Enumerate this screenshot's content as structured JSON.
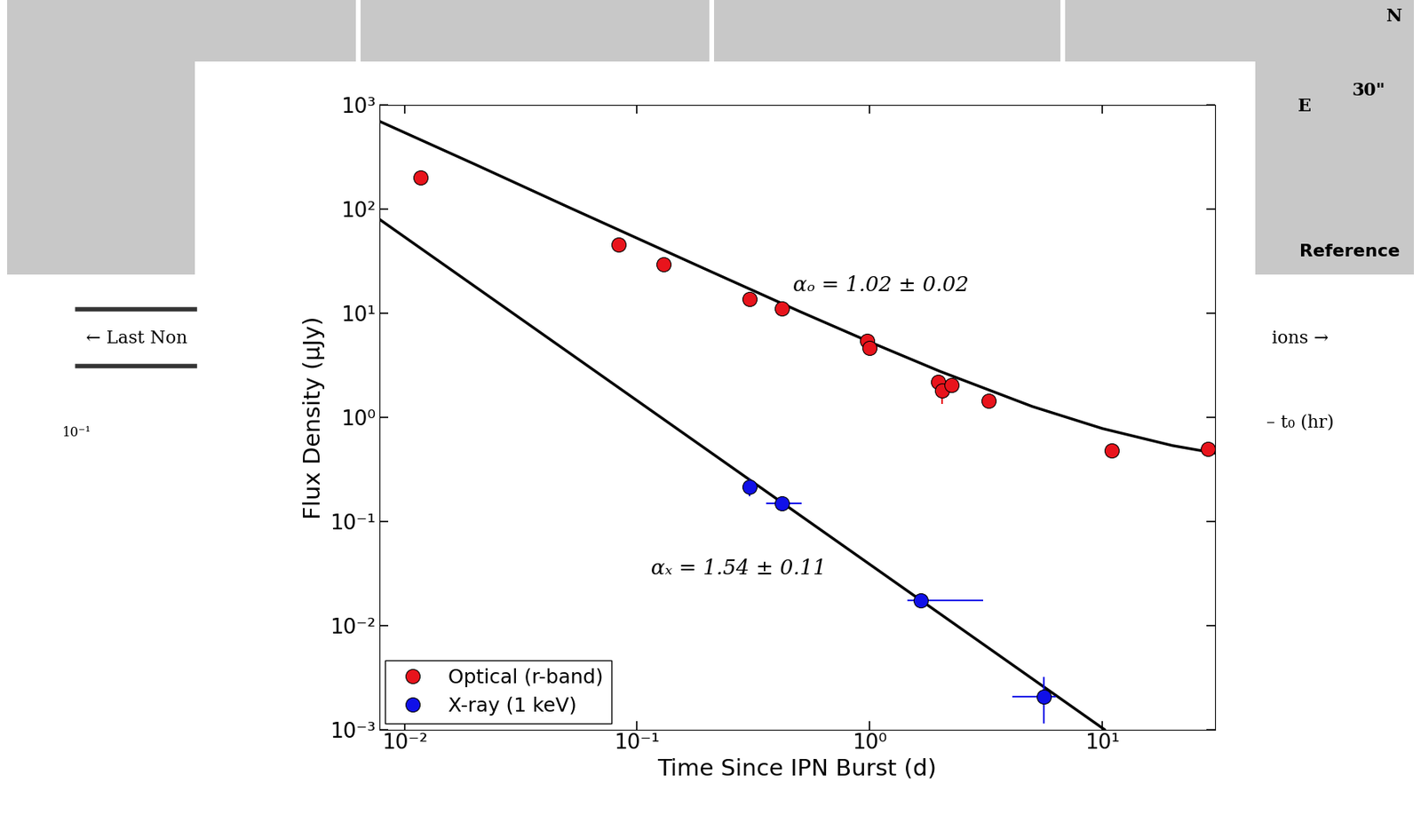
{
  "chart_data": {
    "type": "scatter",
    "x_label": "Time Since IPN Burst (d)",
    "y_label": "Flux Density (μJy)",
    "log": true,
    "grid": false,
    "legend": "lower left",
    "xlim": [
      0.0078,
      30.5
    ],
    "ylim": [
      0.001,
      1000
    ],
    "xticks": [
      {
        "value": 0.01,
        "label": "10⁻²"
      },
      {
        "value": 0.1,
        "label": "10⁻¹"
      },
      {
        "value": 1,
        "label": "10⁰"
      },
      {
        "value": 10,
        "label": "10¹"
      }
    ],
    "yticks": [
      {
        "value": 0.001,
        "label": "10⁻³"
      },
      {
        "value": 0.01,
        "label": "10⁻²"
      },
      {
        "value": 0.1,
        "label": "10⁻¹"
      },
      {
        "value": 1,
        "label": "10⁰"
      },
      {
        "value": 10,
        "label": "10¹"
      },
      {
        "value": 100,
        "label": "10²"
      },
      {
        "value": 1000,
        "label": "10³"
      }
    ],
    "series": [
      {
        "name": "Optical (r-band)",
        "type": "scatter",
        "color": "#e8141c",
        "marker": "o",
        "x": [
          0.0117,
          0.083,
          0.13,
          0.305,
          0.419,
          0.973,
          1.0,
          1.97,
          2.04,
          2.24,
          3.25,
          11.0,
          28.4
        ],
        "values": [
          201,
          45.5,
          29.3,
          13.7,
          11.2,
          5.4,
          4.6,
          2.2,
          1.8,
          2.03,
          1.45,
          0.48,
          0.5
        ],
        "yerr": [
          null,
          null,
          null,
          null,
          null,
          null,
          null,
          null,
          [
            0.45,
            0.35
          ],
          null,
          null,
          [
            0.05,
            0.05
          ],
          null
        ],
        "xerr": [
          null,
          null,
          null,
          null,
          null,
          null,
          null,
          null,
          null,
          null,
          null,
          null,
          null
        ]
      },
      {
        "name": "X-ray (1 keV)",
        "type": "scatter",
        "color": "#1010e8",
        "marker": "o",
        "x": [
          0.305,
          0.419,
          1.66,
          5.6
        ],
        "values": [
          0.215,
          0.15,
          0.0175,
          0.00205
        ],
        "yerr": [
          [
            0.04,
            0.04
          ],
          [
            0.02,
            0.02
          ],
          [
            0.0025,
            0.0025
          ],
          [
            0.0009,
            0.00115
          ]
        ],
        "xerr": [
          null,
          [
            0.06,
            0.09
          ],
          [
            0.21,
            1.41
          ],
          [
            1.49,
            0.7
          ]
        ]
      },
      {
        "type": "line",
        "color": "#000000",
        "line_style": "solid",
        "x": [
          0.0078,
          0.02,
          0.05,
          0.1,
          0.2,
          0.5,
          1,
          2,
          5,
          10,
          20,
          30.5
        ],
        "values": [
          700,
          271,
          106,
          52.6,
          26.1,
          10.4,
          5.3,
          2.77,
          1.27,
          0.78,
          0.535,
          0.453
        ]
      },
      {
        "type": "line",
        "color": "#000000",
        "line_style": "solid",
        "x": [
          0.0078,
          10.2
        ],
        "values": [
          80,
          0.001
        ]
      }
    ],
    "annotations": [
      "αₒ = 1.02 ± 0.02",
      "αₓ = 1.54 ± 0.11"
    ]
  },
  "background": {
    "texts": [
      "N",
      "30\"",
      "E",
      "Reference",
      "← Last Non",
      "ions →",
      "– t₀ (hr)",
      "10⁻¹"
    ]
  }
}
